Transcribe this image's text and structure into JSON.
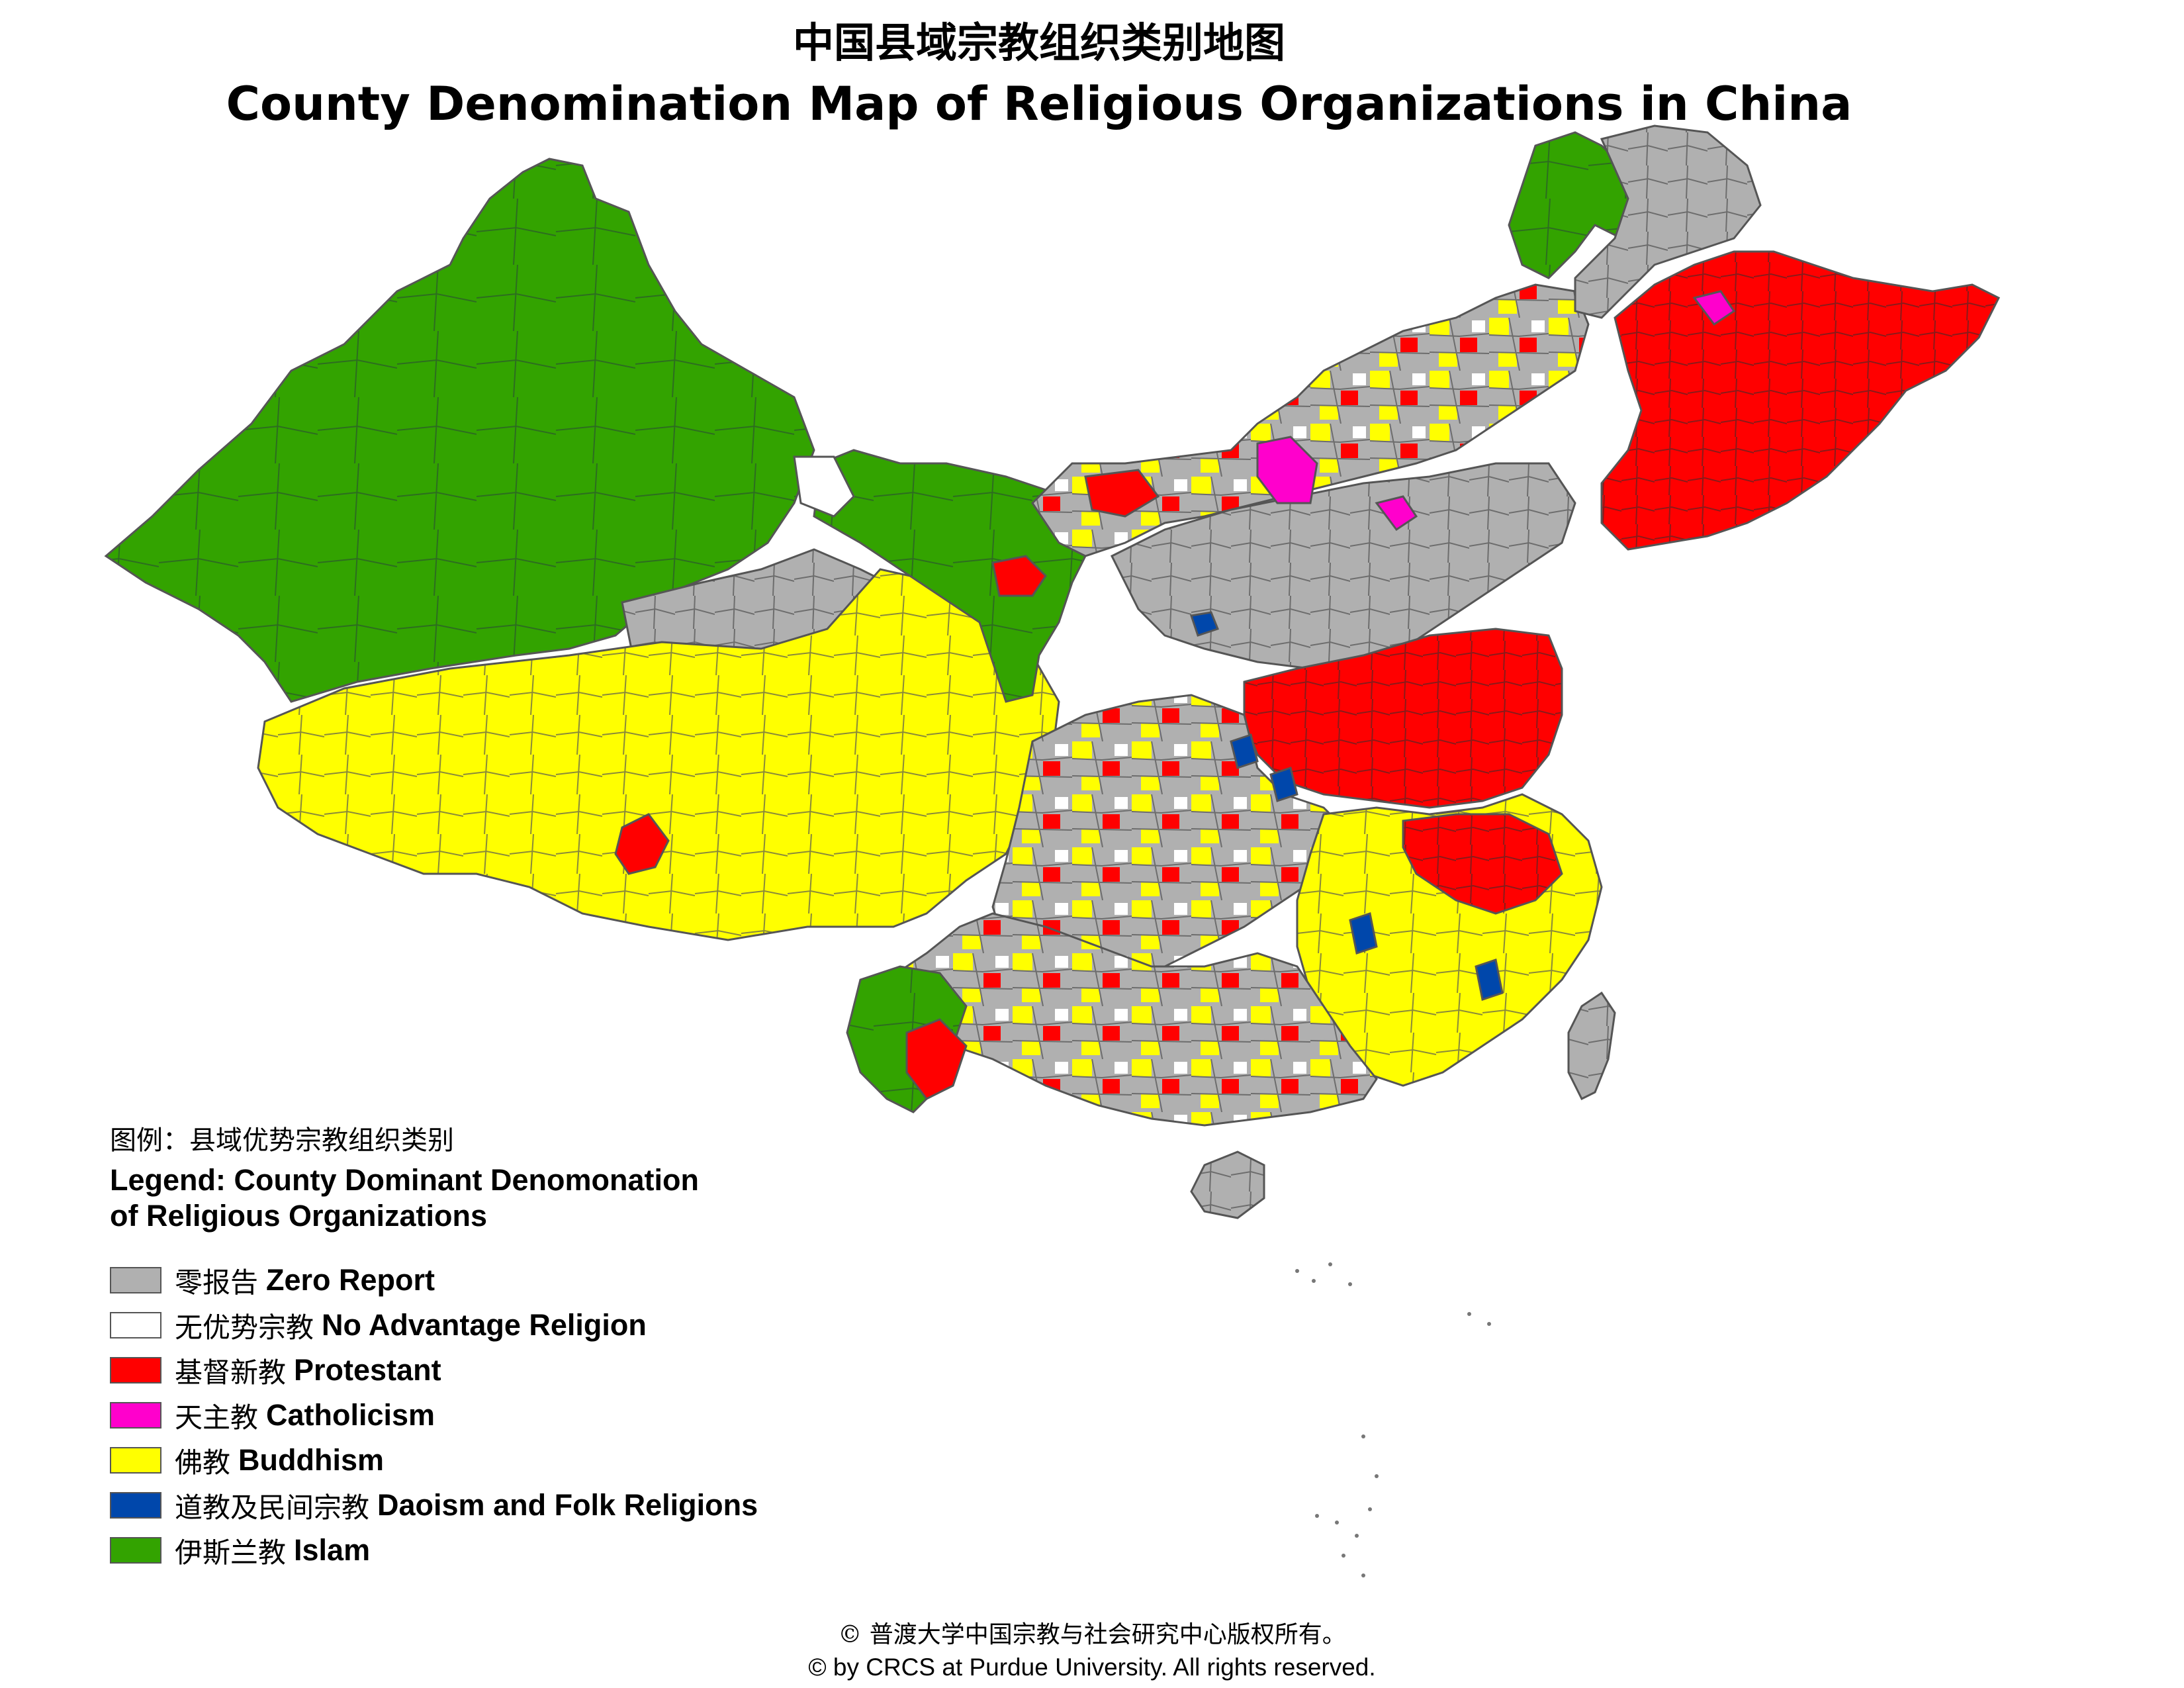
{
  "title": {
    "cn": "中国县域宗教组织类别地图",
    "en": "County Denomination Map of Religious Organizations in China"
  },
  "legend": {
    "title_cn": "图例：县域优势宗教组织类别",
    "title_en_line1": "Legend: County Dominant Denomonation",
    "title_en_line2": "of Religious Organizations",
    "items": [
      {
        "cn": "零报告",
        "en": "Zero Report",
        "color": "#b0b0b0"
      },
      {
        "cn": "无优势宗教",
        "en": "No Advantage Religion",
        "color": "#ffffff"
      },
      {
        "cn": "基督新教",
        "en": "Protestant",
        "color": "#ff0000"
      },
      {
        "cn": "天主教",
        "en": "Catholicism",
        "color": "#ff00cc"
      },
      {
        "cn": "佛教",
        "en": "Buddhism",
        "color": "#ffff00"
      },
      {
        "cn": "道教及民间宗教",
        "en": "Daoism and Folk Religions",
        "color": "#0047ab"
      },
      {
        "cn": "伊斯兰教",
        "en": "Islam",
        "color": "#33a300"
      }
    ]
  },
  "footer": {
    "cn": "© 普渡大学中国宗教与社会研究中心版权所有。",
    "en": "© by CRCS at Purdue University. All rights reserved."
  }
}
